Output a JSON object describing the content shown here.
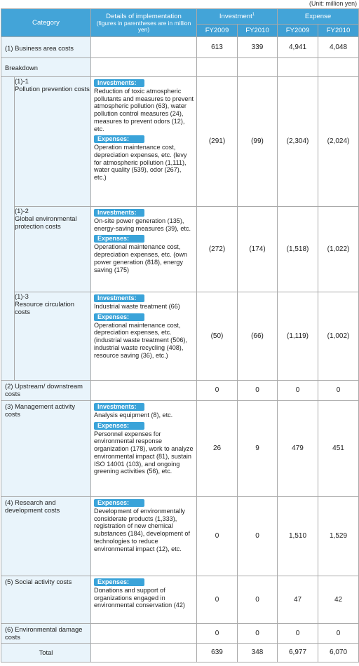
{
  "unit_note": "(Unit: million yen)",
  "header": {
    "category": "Category",
    "details": "Details of implementation",
    "details_sub": "(figures in parentheses are in million yen)",
    "investment": "Investment",
    "investment_sup": "1",
    "expense": "Expense",
    "fy2009": "FY2009",
    "fy2010": "FY2010"
  },
  "rows": {
    "business": {
      "label": "(1)  Business area costs",
      "inv2009": "613",
      "inv2010": "339",
      "exp2009": "4,941",
      "exp2010": "4,048"
    },
    "breakdown": "Breakdown",
    "pollution": {
      "num": "(1)-1",
      "label": "Pollution prevention costs",
      "inv_tag": "Investments:",
      "inv_text": "Reduction of toxic atmospheric pollutants and measures to prevent atmospheric pollution (63), water pollution control measures (24), measures to prevent odors (12), etc.",
      "exp_tag": "Expenses:",
      "exp_text": "Operation maintenance cost, depreciation expenses, etc. (levy for atmospheric pollution (1,111), water quality (539), odor (267), etc.)",
      "inv2009": "(291)",
      "inv2010": "(99)",
      "exp2009": "(2,304)",
      "exp2010": "(2,024)"
    },
    "global": {
      "num": "(1)-2",
      "label": "Global environmental protection costs",
      "inv_tag": "Investments:",
      "inv_text": "On-site power generation (135), energy-saving measures (39), etc.",
      "exp_tag": "Expenses:",
      "exp_text": "Operational maintenance cost, depreciation expenses, etc. (own power generation (818), energy saving (175)",
      "inv2009": "(272)",
      "inv2010": "(174)",
      "exp2009": "(1,518)",
      "exp2010": "(1,022)"
    },
    "resource": {
      "num": "(1)-3",
      "label": "Resource circulation costs",
      "inv_tag": "Investments:",
      "inv_text": "Industrial waste treatment (66)",
      "exp_tag": "Expenses:",
      "exp_text": "Operational maintenance cost, depreciation expenses, etc. (industrial waste treatment (506), industrial waste recycling (408), resource saving (36), etc.)",
      "inv2009": "(50)",
      "inv2010": "(66)",
      "exp2009": "(1,119)",
      "exp2010": "(1,002)"
    },
    "upstream": {
      "label": "(2)  Upstream/ downstream costs",
      "inv2009": "0",
      "inv2010": "0",
      "exp2009": "0",
      "exp2010": "0"
    },
    "management": {
      "label": "(3)  Management activity costs",
      "inv_tag": "Investments:",
      "inv_text": "Analysis equipment (8), etc.",
      "exp_tag": "Expenses:",
      "exp_text": "Personnel expenses for environmental response organization (178), work to analyze environmental impact (81), sustain ISO 14001 (103), and ongoing greening activities (56), etc.",
      "inv2009": "26",
      "inv2010": "9",
      "exp2009": "479",
      "exp2010": "451"
    },
    "research": {
      "label": "(4)  Research and development costs",
      "exp_tag": "Expenses:",
      "exp_text": "Development of environmentally considerate products (1,333), registration of new chemical substances (184), development of technologies to reduce environmental impact (12), etc.",
      "inv2009": "0",
      "inv2010": "0",
      "exp2009": "1,510",
      "exp2010": "1,529"
    },
    "social": {
      "label": "(5)  Social activity costs",
      "exp_tag": "Expenses:",
      "exp_text": "Donations and support of organizations engaged in environmental conservation (42)",
      "inv2009": "0",
      "inv2010": "0",
      "exp2009": "47",
      "exp2010": "42"
    },
    "damage": {
      "label": "(6)  Environmental damage costs",
      "inv2009": "0",
      "inv2010": "0",
      "exp2009": "0",
      "exp2010": "0"
    },
    "total": {
      "label": "Total",
      "inv2009": "639",
      "inv2010": "348",
      "exp2009": "6,977",
      "exp2010": "6,070"
    }
  }
}
